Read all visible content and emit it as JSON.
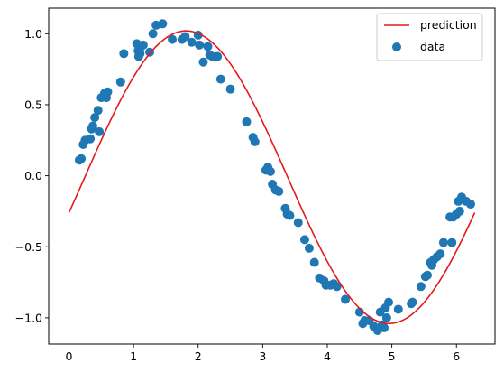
{
  "chart_data": {
    "type": "scatter",
    "title": "",
    "xlabel": "",
    "ylabel": "",
    "xlim": [
      -0.314,
      6.597
    ],
    "ylim": [
      -1.185,
      1.18
    ],
    "xticks": [
      0,
      1,
      2,
      3,
      4,
      5,
      6
    ],
    "yticks": [
      -1.0,
      -0.5,
      0.0,
      0.5,
      1.0
    ],
    "xtick_labels": [
      "0",
      "1",
      "2",
      "3",
      "4",
      "5",
      "6"
    ],
    "ytick_labels": [
      "−1.0",
      "−0.5",
      "0.0",
      "0.5",
      "1.0"
    ],
    "grid": false,
    "legend_position": "top-right",
    "legend": [
      "prediction",
      "data"
    ],
    "colors": {
      "prediction": "#e41a1c",
      "data": "#1f77b4"
    },
    "prediction_curve": {
      "model": "a*sin(x - p) + c",
      "amplitude": 1.03,
      "phase": 0.245,
      "offset": -0.01,
      "x_range": [
        0,
        6.283
      ]
    },
    "data": {
      "x": [
        0.16,
        0.19,
        0.22,
        0.25,
        0.33,
        0.35,
        0.37,
        0.4,
        0.45,
        0.47,
        0.5,
        0.55,
        0.58,
        0.6,
        0.8,
        0.85,
        1.05,
        1.07,
        1.08,
        1.1,
        1.12,
        1.15,
        1.25,
        1.3,
        1.35,
        1.45,
        1.6,
        1.75,
        1.8,
        1.9,
        2.0,
        2.02,
        2.08,
        2.15,
        2.18,
        2.22,
        2.3,
        2.35,
        2.5,
        2.75,
        2.85,
        2.88,
        3.05,
        3.08,
        3.12,
        3.15,
        3.2,
        3.25,
        3.35,
        3.38,
        3.42,
        3.55,
        3.65,
        3.72,
        3.8,
        3.88,
        3.95,
        3.98,
        4.05,
        4.1,
        4.15,
        4.28,
        4.5,
        4.55,
        4.58,
        4.65,
        4.72,
        4.78,
        4.82,
        4.85,
        4.88,
        4.9,
        4.92,
        4.95,
        5.1,
        5.3,
        5.32,
        5.45,
        5.52,
        5.55,
        5.6,
        5.62,
        5.65,
        5.7,
        5.75,
        5.8,
        5.9,
        5.93,
        5.95,
        6.0,
        6.03,
        6.05,
        6.08,
        6.15,
        6.22
      ],
      "y": [
        0.11,
        0.12,
        0.22,
        0.25,
        0.26,
        0.33,
        0.35,
        0.41,
        0.46,
        0.31,
        0.55,
        0.58,
        0.55,
        0.59,
        0.66,
        0.86,
        0.93,
        0.88,
        0.84,
        0.86,
        0.91,
        0.92,
        0.87,
        1.0,
        1.06,
        1.07,
        0.96,
        0.96,
        0.98,
        0.94,
        0.99,
        0.92,
        0.8,
        0.91,
        0.85,
        0.84,
        0.84,
        0.68,
        0.61,
        0.38,
        0.27,
        0.24,
        0.04,
        0.06,
        0.03,
        -0.06,
        -0.1,
        -0.11,
        -0.23,
        -0.27,
        -0.28,
        -0.33,
        -0.45,
        -0.51,
        -0.61,
        -0.72,
        -0.74,
        -0.77,
        -0.77,
        -0.76,
        -0.78,
        -0.87,
        -0.96,
        -1.04,
        -1.02,
        -1.02,
        -1.06,
        -1.09,
        -0.96,
        -1.05,
        -1.07,
        -0.93,
        -1.0,
        -0.89,
        -0.94,
        -0.9,
        -0.89,
        -0.78,
        -0.71,
        -0.7,
        -0.61,
        -0.63,
        -0.59,
        -0.57,
        -0.55,
        -0.47,
        -0.29,
        -0.47,
        -0.29,
        -0.27,
        -0.18,
        -0.25,
        -0.15,
        -0.18,
        -0.2
      ]
    }
  }
}
